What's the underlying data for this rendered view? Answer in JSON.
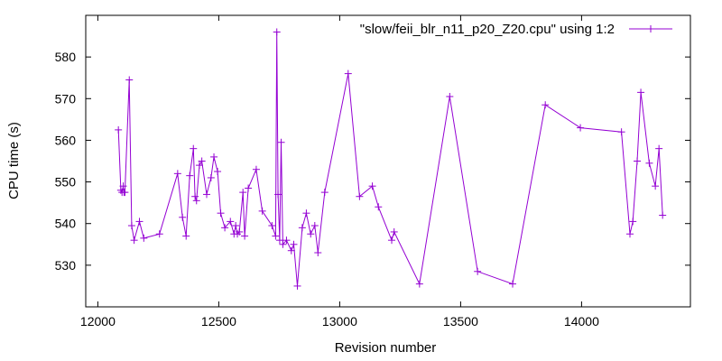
{
  "chart_data": {
    "type": "line",
    "title": "",
    "xlabel": "Revision number",
    "ylabel": "CPU time (s)",
    "xlim": [
      11950,
      14450
    ],
    "ylim": [
      520,
      590
    ],
    "x_ticks": [
      12000,
      12500,
      13000,
      13500,
      14000
    ],
    "y_ticks": [
      530,
      540,
      550,
      560,
      570,
      580
    ],
    "grid": false,
    "legend_position": "top-right",
    "series_color": "#9400d3",
    "series": [
      {
        "name": "\"slow/feii_blr_n11_p20_Z20.cpu\" using 1:2",
        "x": [
          12085,
          12095,
          12100,
          12105,
          12108,
          12112,
          12130,
          12140,
          12150,
          12172,
          12190,
          12255,
          12330,
          12350,
          12365,
          12380,
          12395,
          12402,
          12408,
          12420,
          12430,
          12450,
          12468,
          12480,
          12495,
          12508,
          12525,
          12548,
          12563,
          12570,
          12577,
          12585,
          12600,
          12607,
          12622,
          12655,
          12680,
          12720,
          12735,
          12740,
          12745,
          12752,
          12758,
          12765,
          12780,
          12800,
          12810,
          12825,
          12845,
          12862,
          12880,
          12897,
          12910,
          12938,
          13035,
          13082,
          13135,
          13160,
          13215,
          13225,
          13330,
          13455,
          13570,
          13715,
          13850,
          13995,
          14165,
          14200,
          14212,
          14230,
          14245,
          14280,
          14305,
          14320,
          14335
        ],
        "y": [
          562.5,
          548,
          547.5,
          549,
          547.5,
          547.5,
          574.5,
          539.5,
          536,
          540.5,
          536.5,
          537.5,
          552,
          541.5,
          537,
          551.5,
          558,
          546.5,
          545.5,
          554,
          555,
          547,
          551,
          556,
          552.5,
          542.5,
          539,
          540.5,
          537.5,
          539.5,
          537.5,
          538,
          547.5,
          537,
          548.5,
          553,
          543,
          539.5,
          537,
          586,
          547,
          536,
          559.5,
          535,
          536,
          533.5,
          535,
          525,
          539,
          542.5,
          537.5,
          539.5,
          533,
          547.5,
          576,
          546.5,
          549,
          544,
          536,
          538,
          525.5,
          570.5,
          528.5,
          525.5,
          568.5,
          563,
          562,
          537.5,
          540.5,
          555,
          571.5,
          554.5,
          549,
          558,
          542
        ]
      }
    ]
  }
}
